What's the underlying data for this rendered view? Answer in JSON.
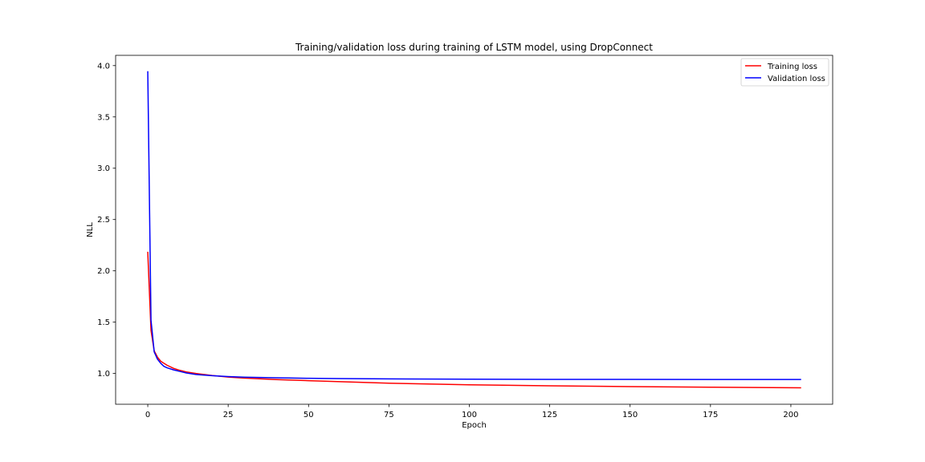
{
  "chart_data": {
    "type": "line",
    "title": "Training/validation loss during training of LSTM model, using DropConnect",
    "xlabel": "Epoch",
    "ylabel": "NLL",
    "xlim": [
      -10,
      213
    ],
    "ylim": [
      0.7,
      4.1
    ],
    "xticks": [
      0,
      25,
      50,
      75,
      100,
      125,
      150,
      175,
      200
    ],
    "yticks": [
      1.0,
      1.5,
      2.0,
      2.5,
      3.0,
      3.5,
      4.0
    ],
    "ytick_labels": [
      "1.0",
      "1.5",
      "2.0",
      "2.5",
      "3.0",
      "3.5",
      "4.0"
    ],
    "grid": false,
    "legend_position": "top-right",
    "series": [
      {
        "name": "Training loss",
        "color": "#ff0000",
        "x": [
          0,
          1,
          2,
          3,
          4,
          5,
          6,
          8,
          10,
          12,
          15,
          20,
          25,
          30,
          40,
          50,
          60,
          75,
          100,
          125,
          150,
          175,
          203
        ],
        "y": [
          2.18,
          1.42,
          1.22,
          1.16,
          1.12,
          1.1,
          1.08,
          1.05,
          1.03,
          1.015,
          1.0,
          0.98,
          0.965,
          0.955,
          0.94,
          0.93,
          0.92,
          0.905,
          0.89,
          0.88,
          0.872,
          0.866,
          0.86
        ]
      },
      {
        "name": "Validation loss",
        "color": "#0000ff",
        "x": [
          0,
          1,
          2,
          3,
          4,
          5,
          6,
          8,
          10,
          12,
          15,
          20,
          25,
          30,
          40,
          50,
          60,
          75,
          100,
          125,
          150,
          175,
          203
        ],
        "y": [
          3.94,
          1.52,
          1.21,
          1.14,
          1.1,
          1.07,
          1.055,
          1.035,
          1.02,
          1.005,
          0.99,
          0.978,
          0.97,
          0.964,
          0.958,
          0.953,
          0.95,
          0.947,
          0.944,
          0.942,
          0.942,
          0.941,
          0.941
        ]
      }
    ]
  }
}
